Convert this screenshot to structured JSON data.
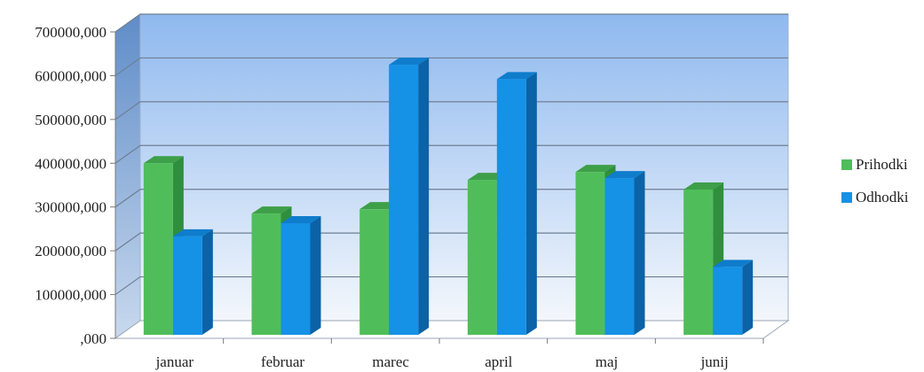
{
  "chart_data": {
    "type": "bar",
    "categories": [
      "januar",
      "februar",
      "marec",
      "april",
      "maj",
      "junij"
    ],
    "series": [
      {
        "name": "Prihodki",
        "values": [
          400000,
          285000,
          295000,
          362000,
          380000,
          340000
        ]
      },
      {
        "name": "Odhodki",
        "values": [
          233000,
          263000,
          625000,
          592000,
          366000,
          163000
        ]
      }
    ],
    "y_tick_labels": [
      ",000",
      "100000,000",
      "200000,000",
      "300000,000",
      "400000,000",
      "500000,000",
      "600000,000",
      "700000,000"
    ],
    "ylim": [
      0,
      700000
    ],
    "grid": true,
    "legend_position": "right",
    "colors": {
      "Prihodki": "#4fbe5a",
      "Prihodki_side": "#2f8f3c",
      "Odhodki": "#1591e6",
      "Odhodki_side": "#0b62a6",
      "background_top": "#8fb9ef",
      "background_bottom": "#f3f7fc",
      "side_wall": "#6f98cf"
    }
  }
}
